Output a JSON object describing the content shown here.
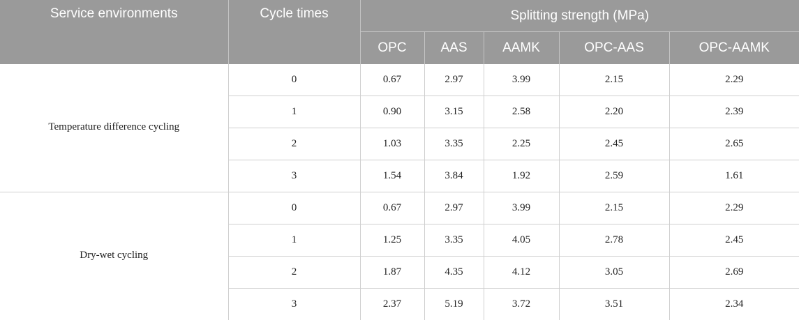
{
  "table": {
    "header": {
      "service_environments": "Service environments",
      "cycle_times": "Cycle times",
      "splitting_strength": "Splitting strength (MPa)",
      "columns": [
        "OPC",
        "AAS",
        "AAMK",
        "OPC-AAS",
        "OPC-AAMK"
      ]
    },
    "groups": [
      {
        "environment": "Temperature difference cycling",
        "rows": [
          {
            "cycle": "0",
            "values": [
              "0.67",
              "2.97",
              "3.99",
              "2.15",
              "2.29"
            ]
          },
          {
            "cycle": "1",
            "values": [
              "0.90",
              "3.15",
              "2.58",
              "2.20",
              "2.39"
            ]
          },
          {
            "cycle": "2",
            "values": [
              "1.03",
              "3.35",
              "2.25",
              "2.45",
              "2.65"
            ]
          },
          {
            "cycle": "3",
            "values": [
              "1.54",
              "3.84",
              "1.92",
              "2.59",
              "1.61"
            ]
          }
        ]
      },
      {
        "environment": "Dry-wet cycling",
        "rows": [
          {
            "cycle": "0",
            "values": [
              "0.67",
              "2.97",
              "3.99",
              "2.15",
              "2.29"
            ]
          },
          {
            "cycle": "1",
            "values": [
              "1.25",
              "3.35",
              "4.05",
              "2.78",
              "2.45"
            ]
          },
          {
            "cycle": "2",
            "values": [
              "1.87",
              "4.35",
              "4.12",
              "3.05",
              "2.69"
            ]
          },
          {
            "cycle": "3",
            "values": [
              "2.37",
              "5.19",
              "3.72",
              "3.51",
              "2.34"
            ]
          }
        ]
      }
    ]
  },
  "colors": {
    "header_background": "#9a9a9a",
    "header_text": "#ffffff",
    "grid_line": "#cfcfcf"
  }
}
